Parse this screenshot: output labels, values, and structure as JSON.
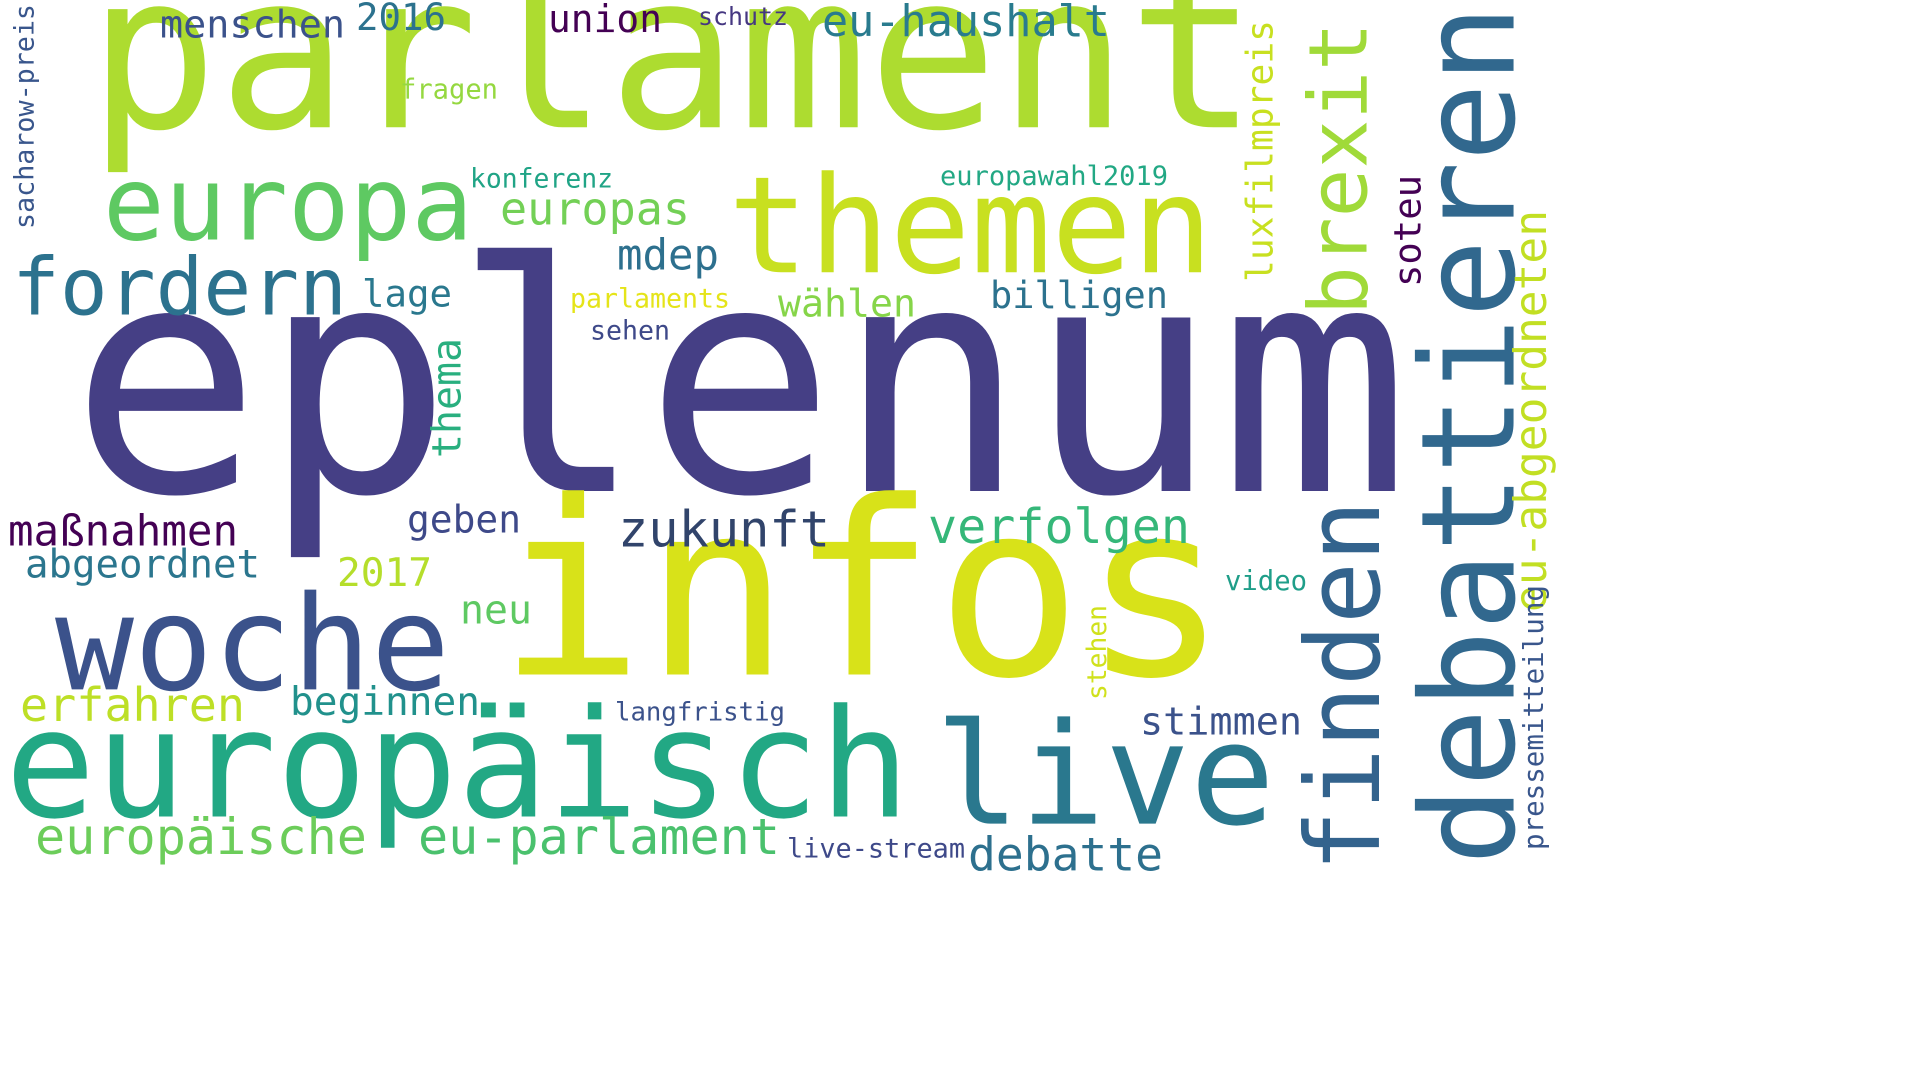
{
  "wordcloud": {
    "words": [
      {
        "text": "eplenum",
        "color": "#453f85"
      },
      {
        "text": "parlament",
        "color": "#addc30"
      },
      {
        "text": "infos",
        "color": "#d8e219"
      },
      {
        "text": "europäisch",
        "color": "#22a884"
      },
      {
        "text": "debattieren",
        "color": "#31688e"
      },
      {
        "text": "themen",
        "color": "#c8e020"
      },
      {
        "text": "woche",
        "color": "#3b528b"
      },
      {
        "text": "europa",
        "color": "#5ec962"
      },
      {
        "text": "live",
        "color": "#2a788e"
      },
      {
        "text": "finden",
        "color": "#33638d"
      },
      {
        "text": "fordern",
        "color": "#2c728e"
      },
      {
        "text": "brexit",
        "color": "#a0da39"
      },
      {
        "text": "zukunft",
        "color": "#31446b"
      },
      {
        "text": "verfolgen",
        "color": "#35b779"
      },
      {
        "text": "erfahren",
        "color": "#bddf26"
      },
      {
        "text": "europäische",
        "color": "#6ccd5a"
      },
      {
        "text": "eu-parlament",
        "color": "#4ac16d"
      },
      {
        "text": "debatte",
        "color": "#2d708e"
      },
      {
        "text": "maßnahmen",
        "color": "#440154"
      },
      {
        "text": "abgeordnet",
        "color": "#2b768e"
      },
      {
        "text": "europas",
        "color": "#73d056"
      },
      {
        "text": "eu-haushalt",
        "color": "#297b8e"
      },
      {
        "text": "menschen",
        "color": "#3b528b"
      },
      {
        "text": "union",
        "color": "#440154"
      },
      {
        "text": "2016",
        "color": "#2c728e"
      },
      {
        "text": "mdep",
        "color": "#2d708e"
      },
      {
        "text": "lage",
        "color": "#2a788e"
      },
      {
        "text": "wählen",
        "color": "#86d549"
      },
      {
        "text": "billigen",
        "color": "#2c728e"
      },
      {
        "text": "thema",
        "color": "#29af7f"
      },
      {
        "text": "geben",
        "color": "#3e4989"
      },
      {
        "text": "2017",
        "color": "#b5de2b"
      },
      {
        "text": "neu",
        "color": "#5ec962"
      },
      {
        "text": "beginnen",
        "color": "#21918c"
      },
      {
        "text": "stimmen",
        "color": "#3b528b"
      },
      {
        "text": "eu-abgeordneten",
        "color": "#c2df23"
      },
      {
        "text": "luxfilmpreis",
        "color": "#c8e020"
      },
      {
        "text": "soteu",
        "color": "#440154"
      },
      {
        "text": "europawahl2019",
        "color": "#22a884"
      },
      {
        "text": "konferenz",
        "color": "#20a486"
      },
      {
        "text": "fragen",
        "color": "#95d840"
      },
      {
        "text": "schutz",
        "color": "#453781"
      },
      {
        "text": "parlaments",
        "color": "#e5e419"
      },
      {
        "text": "sehen",
        "color": "#3e4989"
      },
      {
        "text": "sacharow-preis",
        "color": "#39568c"
      },
      {
        "text": "video",
        "color": "#1f9e89"
      },
      {
        "text": "stehen",
        "color": "#d0e11c"
      },
      {
        "text": "langfristig",
        "color": "#3b528b"
      },
      {
        "text": "live-stream",
        "color": "#3e4989"
      },
      {
        "text": "pressemitteilung",
        "color": "#39568c"
      }
    ]
  }
}
